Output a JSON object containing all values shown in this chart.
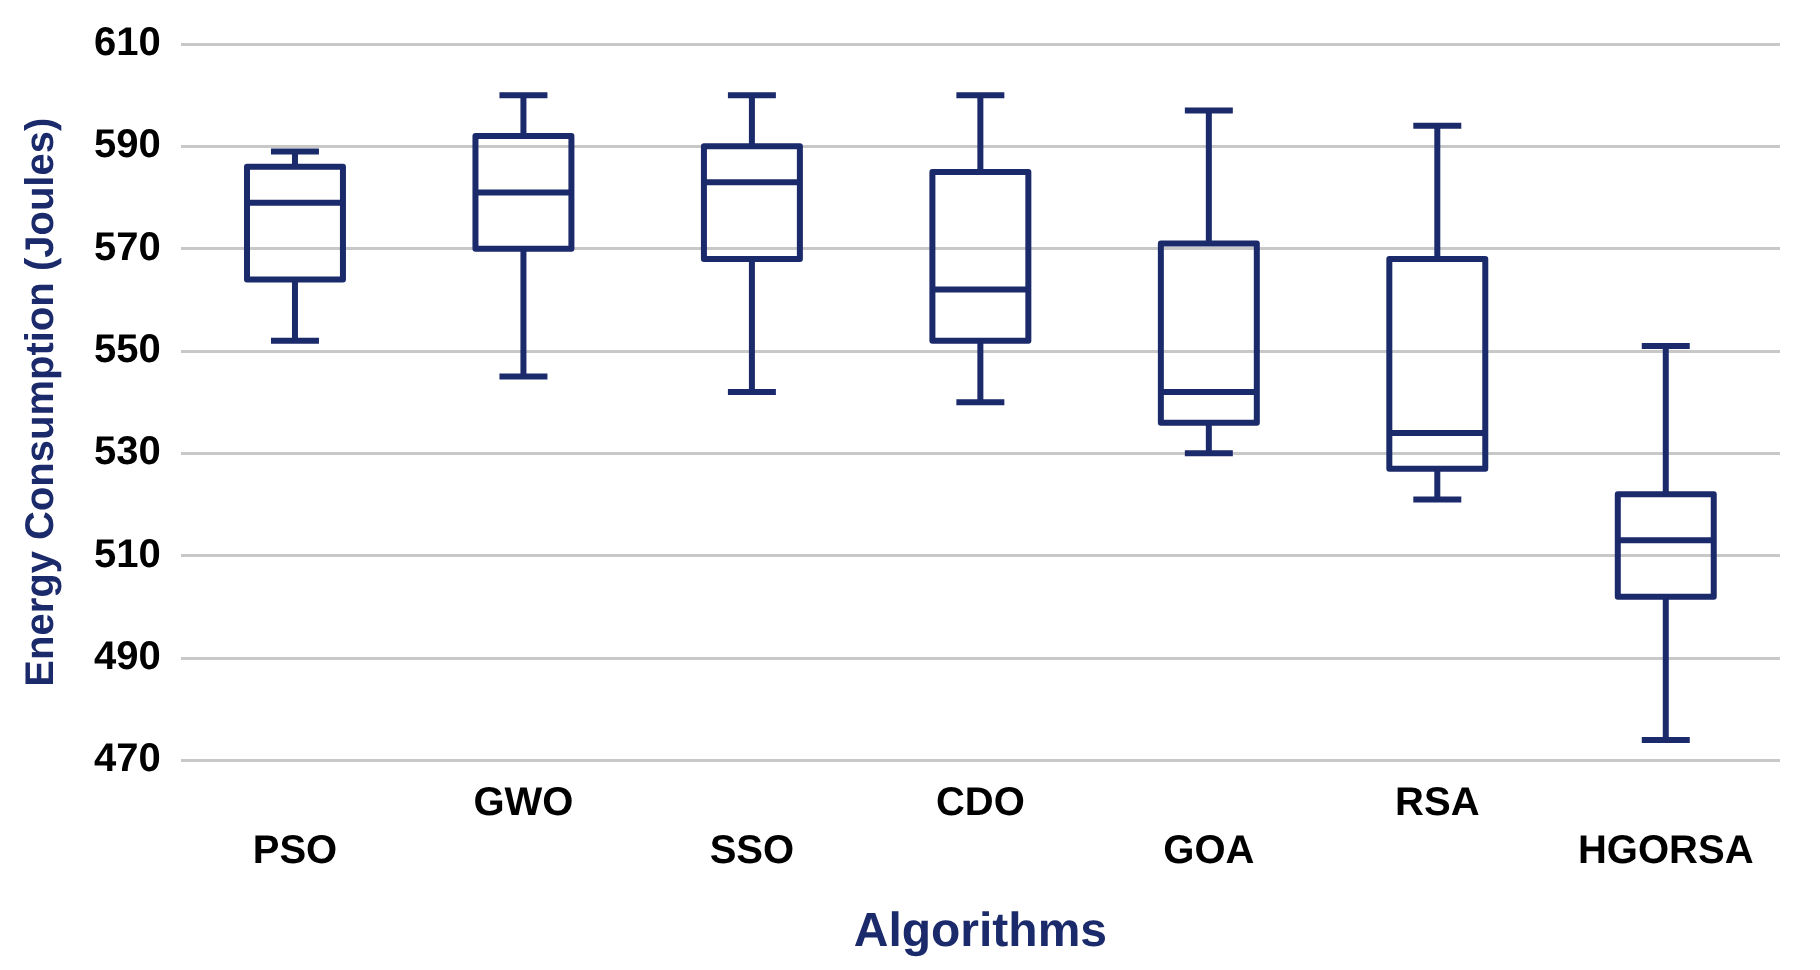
{
  "chart_data": {
    "type": "box",
    "xlabel": "Algorithms",
    "ylabel": "Energy Consumption (Joules)",
    "categories": [
      "PSO",
      "GWO",
      "SSO",
      "CDO",
      "GOA",
      "RSA",
      "HGORSA"
    ],
    "color": "#1b2a6b",
    "boxes": [
      {
        "low": 552,
        "q1": 564,
        "median": 579,
        "q3": 586,
        "high": 589
      },
      {
        "low": 545,
        "q1": 570,
        "median": 581,
        "q3": 592,
        "high": 600
      },
      {
        "low": 542,
        "q1": 568,
        "median": 583,
        "q3": 590,
        "high": 600
      },
      {
        "low": 540,
        "q1": 552,
        "median": 562,
        "q3": 585,
        "high": 600
      },
      {
        "low": 530,
        "q1": 536,
        "median": 542,
        "q3": 571,
        "high": 597
      },
      {
        "low": 521,
        "q1": 527,
        "median": 534,
        "q3": 568,
        "high": 594
      },
      {
        "low": 474,
        "q1": 502,
        "median": 513,
        "q3": 522,
        "high": 551
      }
    ],
    "ylim": [
      470,
      610
    ],
    "yticks": [
      470,
      490,
      510,
      530,
      550,
      570,
      590,
      610
    ],
    "grid": "y"
  }
}
